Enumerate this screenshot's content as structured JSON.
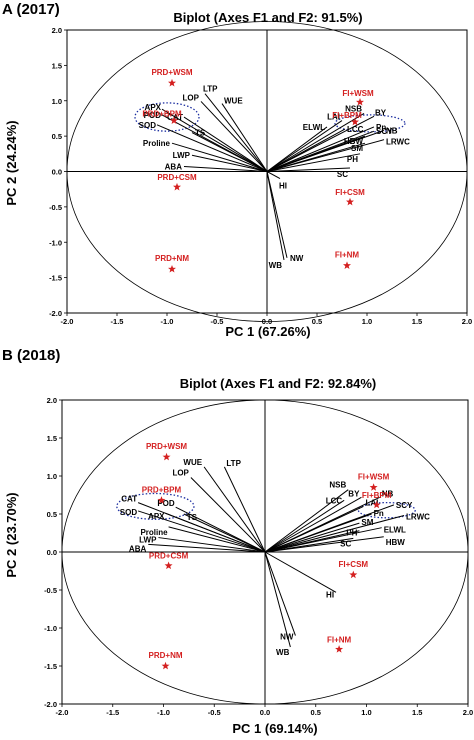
{
  "colors": {
    "observation": "#d42020",
    "variable": "#000000",
    "cluster_ring": "#1c2ea0",
    "frame": "#000000"
  },
  "chart_data": [
    {
      "type": "scatter",
      "panel": "A (2017)",
      "title": "Biplot (Axes F1 and F2: 91.5%)",
      "xlabel": "PC  1 (67.26%)",
      "ylabel": "PC 2 (24.24%)",
      "xlim": [
        -2.0,
        2.0
      ],
      "ylim": [
        -2.0,
        2.0
      ],
      "xticks": [
        "-2.0",
        "-1.5",
        "-1.0",
        "-0.5",
        "0.0",
        "0.5",
        "1.0",
        "1.5",
        "2.0"
      ],
      "yticks": [
        "-2.0",
        "-1.5",
        "-1.0",
        "-0.5",
        "0.0",
        "0.5",
        "1.0",
        "1.5",
        "2.0"
      ],
      "grid": false,
      "observations": [
        {
          "label": "PRD+WSM",
          "x": -0.95,
          "y": 1.25
        },
        {
          "label": "PRD+BPM",
          "x": -0.93,
          "y": 0.72
        },
        {
          "label": "PRD+CSM",
          "x": -0.9,
          "y": -0.22
        },
        {
          "label": "PRD+NM",
          "x": -0.95,
          "y": -1.38
        },
        {
          "label": "FI+WSM",
          "x": 0.93,
          "y": 0.98
        },
        {
          "label": "FI+BPM",
          "x": 0.88,
          "y": 0.7
        },
        {
          "label": "FI+CSM",
          "x": 0.83,
          "y": -0.43
        },
        {
          "label": "FI+NM",
          "x": 0.8,
          "y": -1.33
        }
      ],
      "variables": [
        {
          "label": "WUE",
          "x": -0.45,
          "y": 0.96
        },
        {
          "label": "LTP",
          "x": -0.62,
          "y": 1.1
        },
        {
          "label": "LOP",
          "x": -0.66,
          "y": 0.99
        },
        {
          "label": "APX",
          "x": -1.05,
          "y": 0.88
        },
        {
          "label": "CAT",
          "x": -0.83,
          "y": 0.77
        },
        {
          "label": "POD",
          "x": -1.05,
          "y": 0.8
        },
        {
          "label": "SOD",
          "x": -1.1,
          "y": 0.66
        },
        {
          "label": "TS",
          "x": -0.75,
          "y": 0.55
        },
        {
          "label": "Proline",
          "x": -0.95,
          "y": 0.4
        },
        {
          "label": "LWP",
          "x": -0.75,
          "y": 0.23
        },
        {
          "label": "ABA",
          "x": -0.83,
          "y": 0.07
        },
        {
          "label": "HI",
          "x": 0.13,
          "y": -0.1
        },
        {
          "label": "NW",
          "x": 0.2,
          "y": -1.22
        },
        {
          "label": "WB",
          "x": 0.17,
          "y": -1.25
        },
        {
          "label": "NSB",
          "x": 0.97,
          "y": 0.82
        },
        {
          "label": "BY",
          "x": 1.07,
          "y": 0.78
        },
        {
          "label": "LAI",
          "x": 0.75,
          "y": 0.72
        },
        {
          "label": "ELWL",
          "x": 0.6,
          "y": 0.63
        },
        {
          "label": "LCC",
          "x": 0.78,
          "y": 0.6
        },
        {
          "label": "Pn",
          "x": 1.07,
          "y": 0.63
        },
        {
          "label": "SCY",
          "x": 1.07,
          "y": 0.57
        },
        {
          "label": "NB",
          "x": 1.17,
          "y": 0.58
        },
        {
          "label": "LRWC",
          "x": 1.17,
          "y": 0.45
        },
        {
          "label": "HBW",
          "x": 0.98,
          "y": 0.5
        },
        {
          "label": "SM",
          "x": 0.98,
          "y": 0.4
        },
        {
          "label": "PH",
          "x": 0.93,
          "y": 0.25
        },
        {
          "label": "SC",
          "x": 0.83,
          "y": 0.05
        }
      ]
    },
    {
      "type": "scatter",
      "panel": "B (2018)",
      "title": "Biplot (Axes F1 and F2: 92.84%)",
      "xlabel": "PC  1 (69.14%)",
      "ylabel": "PC 2 (23.70%)",
      "xlim": [
        -2.0,
        2.0
      ],
      "ylim": [
        -2.0,
        2.0
      ],
      "xticks": [
        "-2.0",
        "-1.5",
        "-1.0",
        "-0.5",
        "0.0",
        "0.5",
        "1.0",
        "1.5",
        "2.0"
      ],
      "yticks": [
        "-2.0",
        "-1.5",
        "-1.0",
        "-0.5",
        "0.0",
        "0.5",
        "1.0",
        "1.5",
        "2.0"
      ],
      "grid": false,
      "observations": [
        {
          "label": "PRD+WSM",
          "x": -0.97,
          "y": 1.25
        },
        {
          "label": "PRD+BPM",
          "x": -1.02,
          "y": 0.68
        },
        {
          "label": "PRD+CSM",
          "x": -0.95,
          "y": -0.18
        },
        {
          "label": "PRD+NM",
          "x": -0.98,
          "y": -1.5
        },
        {
          "label": "FI+WSM",
          "x": 1.07,
          "y": 0.85
        },
        {
          "label": "FI+BPM",
          "x": 1.1,
          "y": 0.62
        },
        {
          "label": "FI+CSM",
          "x": 0.87,
          "y": -0.3
        },
        {
          "label": "FI+NM",
          "x": 0.73,
          "y": -1.28
        }
      ],
      "variables": [
        {
          "label": "WUE",
          "x": -0.6,
          "y": 1.12
        },
        {
          "label": "LTP",
          "x": -0.4,
          "y": 1.12
        },
        {
          "label": "LOP",
          "x": -0.73,
          "y": 0.98
        },
        {
          "label": "CAT",
          "x": -1.25,
          "y": 0.65
        },
        {
          "label": "POD",
          "x": -0.88,
          "y": 0.59
        },
        {
          "label": "SOD",
          "x": -1.25,
          "y": 0.54
        },
        {
          "label": "APX",
          "x": -0.98,
          "y": 0.51
        },
        {
          "label": "TS",
          "x": -0.8,
          "y": 0.5
        },
        {
          "label": "Proline",
          "x": -0.95,
          "y": 0.33
        },
        {
          "label": "LWP",
          "x": -1.05,
          "y": 0.19
        },
        {
          "label": "ABA",
          "x": -1.15,
          "y": 0.1
        },
        {
          "label": "HI",
          "x": 0.7,
          "y": -0.53
        },
        {
          "label": "NW",
          "x": 0.3,
          "y": -1.1
        },
        {
          "label": "WB",
          "x": 0.25,
          "y": -1.25
        },
        {
          "label": "NSB",
          "x": 0.82,
          "y": 0.82
        },
        {
          "label": "BY",
          "x": 0.95,
          "y": 0.72
        },
        {
          "label": "NB",
          "x": 1.13,
          "y": 0.72
        },
        {
          "label": "LCC",
          "x": 0.78,
          "y": 0.68
        },
        {
          "label": "LAI",
          "x": 0.97,
          "y": 0.6
        },
        {
          "label": "SCY",
          "x": 1.27,
          "y": 0.62
        },
        {
          "label": "Pn",
          "x": 1.05,
          "y": 0.5
        },
        {
          "label": "LRWC",
          "x": 1.37,
          "y": 0.48
        },
        {
          "label": "SM",
          "x": 0.93,
          "y": 0.38
        },
        {
          "label": "ELWL",
          "x": 1.15,
          "y": 0.32
        },
        {
          "label": "PH",
          "x": 0.93,
          "y": 0.28
        },
        {
          "label": "SC",
          "x": 0.87,
          "y": 0.18
        },
        {
          "label": "HBW",
          "x": 1.17,
          "y": 0.2
        }
      ]
    }
  ]
}
